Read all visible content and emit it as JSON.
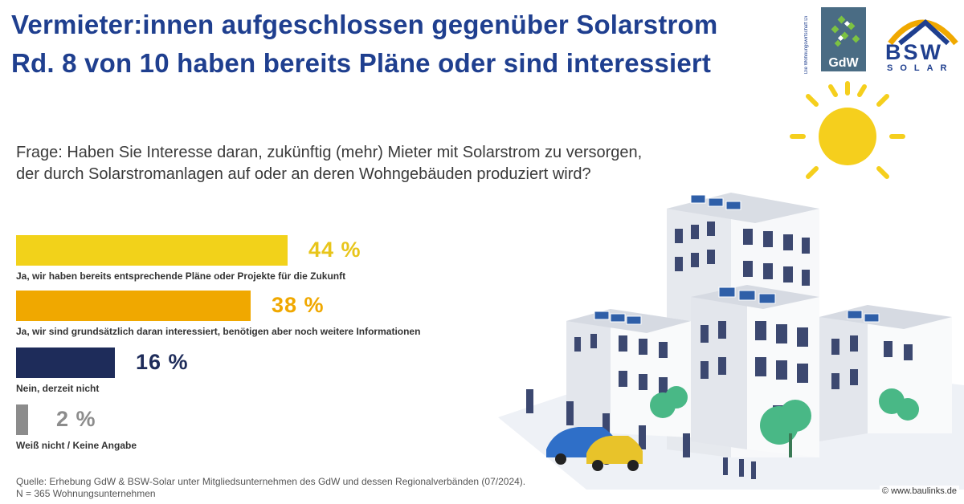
{
  "header": {
    "title_line1": "Vermieter:innen aufgeschlossen gegenüber Solarstrom",
    "title_line2": "Rd. 8 von 10 haben bereits Pläne oder sind interessiert"
  },
  "logos": {
    "gdw_name": "GdW",
    "gdw_vertical": "Die Wohnungswirtschaft Deutschland",
    "bsw_name": "BSW",
    "bsw_sub": "SOLAR"
  },
  "question": "Frage: Haben Sie Interesse daran, zukünftig (mehr) Mieter mit Solarstrom zu versorgen, der durch Solarstromanlagen auf oder an deren Wohngebäuden produziert wird?",
  "chart_data": {
    "type": "bar",
    "orientation": "horizontal",
    "unit": "%",
    "categories": [
      "Ja, wir haben bereits entsprechende Pläne oder Projekte für die Zukunft",
      "Ja, wir sind grundsätzlich daran interessiert, benötigen aber noch weitere Informationen",
      "Nein, derzeit nicht",
      "Weiß nicht / Keine Angabe"
    ],
    "values": [
      44,
      38,
      16,
      2
    ],
    "value_labels": [
      "44 %",
      "38 %",
      "16 %",
      "2 %"
    ],
    "colors": [
      "#f2d21a",
      "#f0a800",
      "#1e2c5a",
      "#8c8c8c"
    ],
    "label_colors": [
      "#e8c51a",
      "#f0a800",
      "#1e2c5a",
      "#8c8c8c"
    ],
    "title": "",
    "xlabel": "",
    "ylabel": ""
  },
  "footer": {
    "source_line1": "Quelle: Erhebung GdW & BSW-Solar unter Mitgliedsunternehmen des GdW und dessen Regionalverbänden (07/2024).",
    "source_line2": "N = 365 Wohnungsunternehmen",
    "credit": "© www.baulinks.de"
  }
}
